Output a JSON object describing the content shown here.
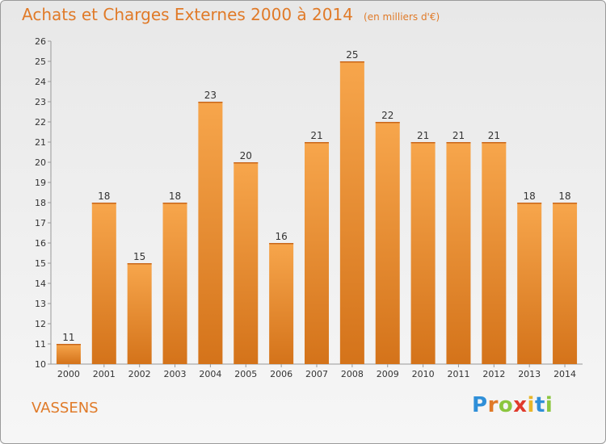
{
  "header": {
    "title": "Achats et Charges Externes 2000 à 2014",
    "unit": "(en milliers d'€)"
  },
  "footer": {
    "town": "VASSENS",
    "logo": "Proxiti"
  },
  "colors": {
    "bar_light": "#f7a64c",
    "bar_dark": "#d4731a",
    "text": "#e07a28",
    "axis_text": "#333333"
  },
  "chart_data": {
    "type": "bar",
    "title": "Achats et Charges Externes 2000 à 2014",
    "categories": [
      "2000",
      "2001",
      "2002",
      "2003",
      "2004",
      "2005",
      "2006",
      "2007",
      "2008",
      "2009",
      "2010",
      "2011",
      "2012",
      "2013",
      "2014"
    ],
    "values": [
      11,
      18,
      15,
      18,
      23,
      20,
      16,
      21,
      25,
      22,
      21,
      21,
      21,
      18,
      18
    ],
    "ylim": [
      10,
      26
    ],
    "yticks": [
      10,
      11,
      12,
      13,
      14,
      15,
      16,
      17,
      18,
      19,
      20,
      21,
      22,
      23,
      24,
      25,
      26
    ],
    "grid": false
  }
}
